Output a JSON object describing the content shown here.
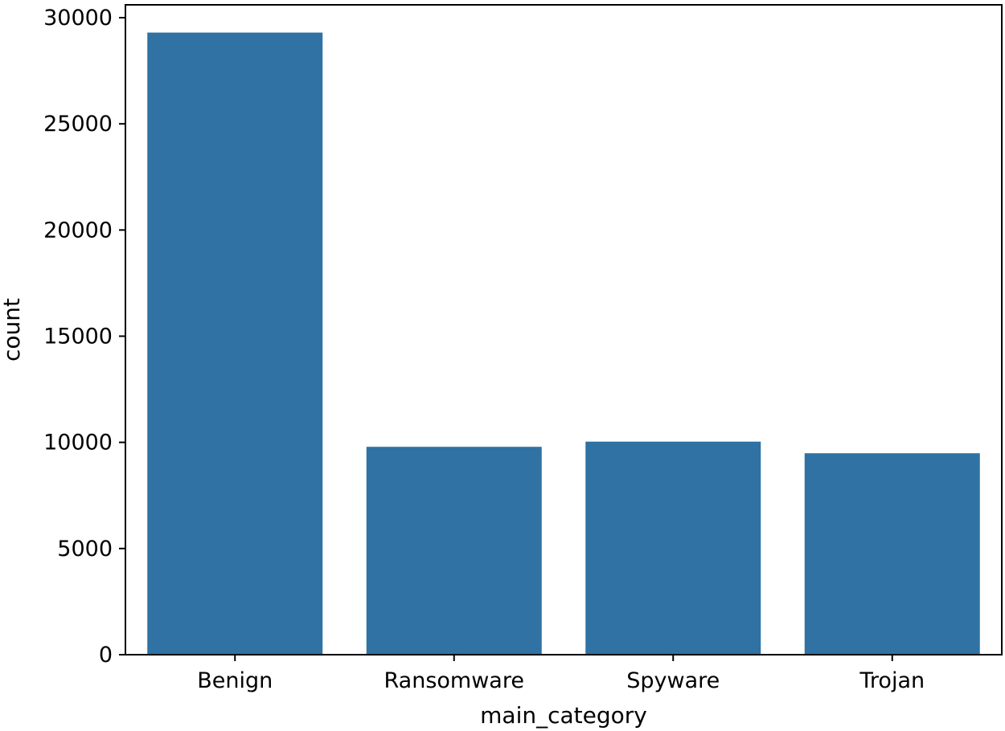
{
  "chart_data": {
    "type": "bar",
    "title": "",
    "xlabel": "main_category",
    "ylabel": "count",
    "categories": [
      "Benign",
      "Ransomware",
      "Spyware",
      "Trojan"
    ],
    "values": [
      29298,
      9790,
      10034,
      9487
    ],
    "ylim": [
      0,
      30000
    ],
    "yticks": [
      0,
      5000,
      10000,
      15000,
      20000,
      25000,
      30000
    ],
    "ytick_labels": [
      "0",
      "5000",
      "10000",
      "15000",
      "20000",
      "25000",
      "30000"
    ],
    "grid": false,
    "legend": "none",
    "colors": {
      "bar": "#2f72a3",
      "axis": "#000000",
      "background": "#ffffff"
    }
  }
}
